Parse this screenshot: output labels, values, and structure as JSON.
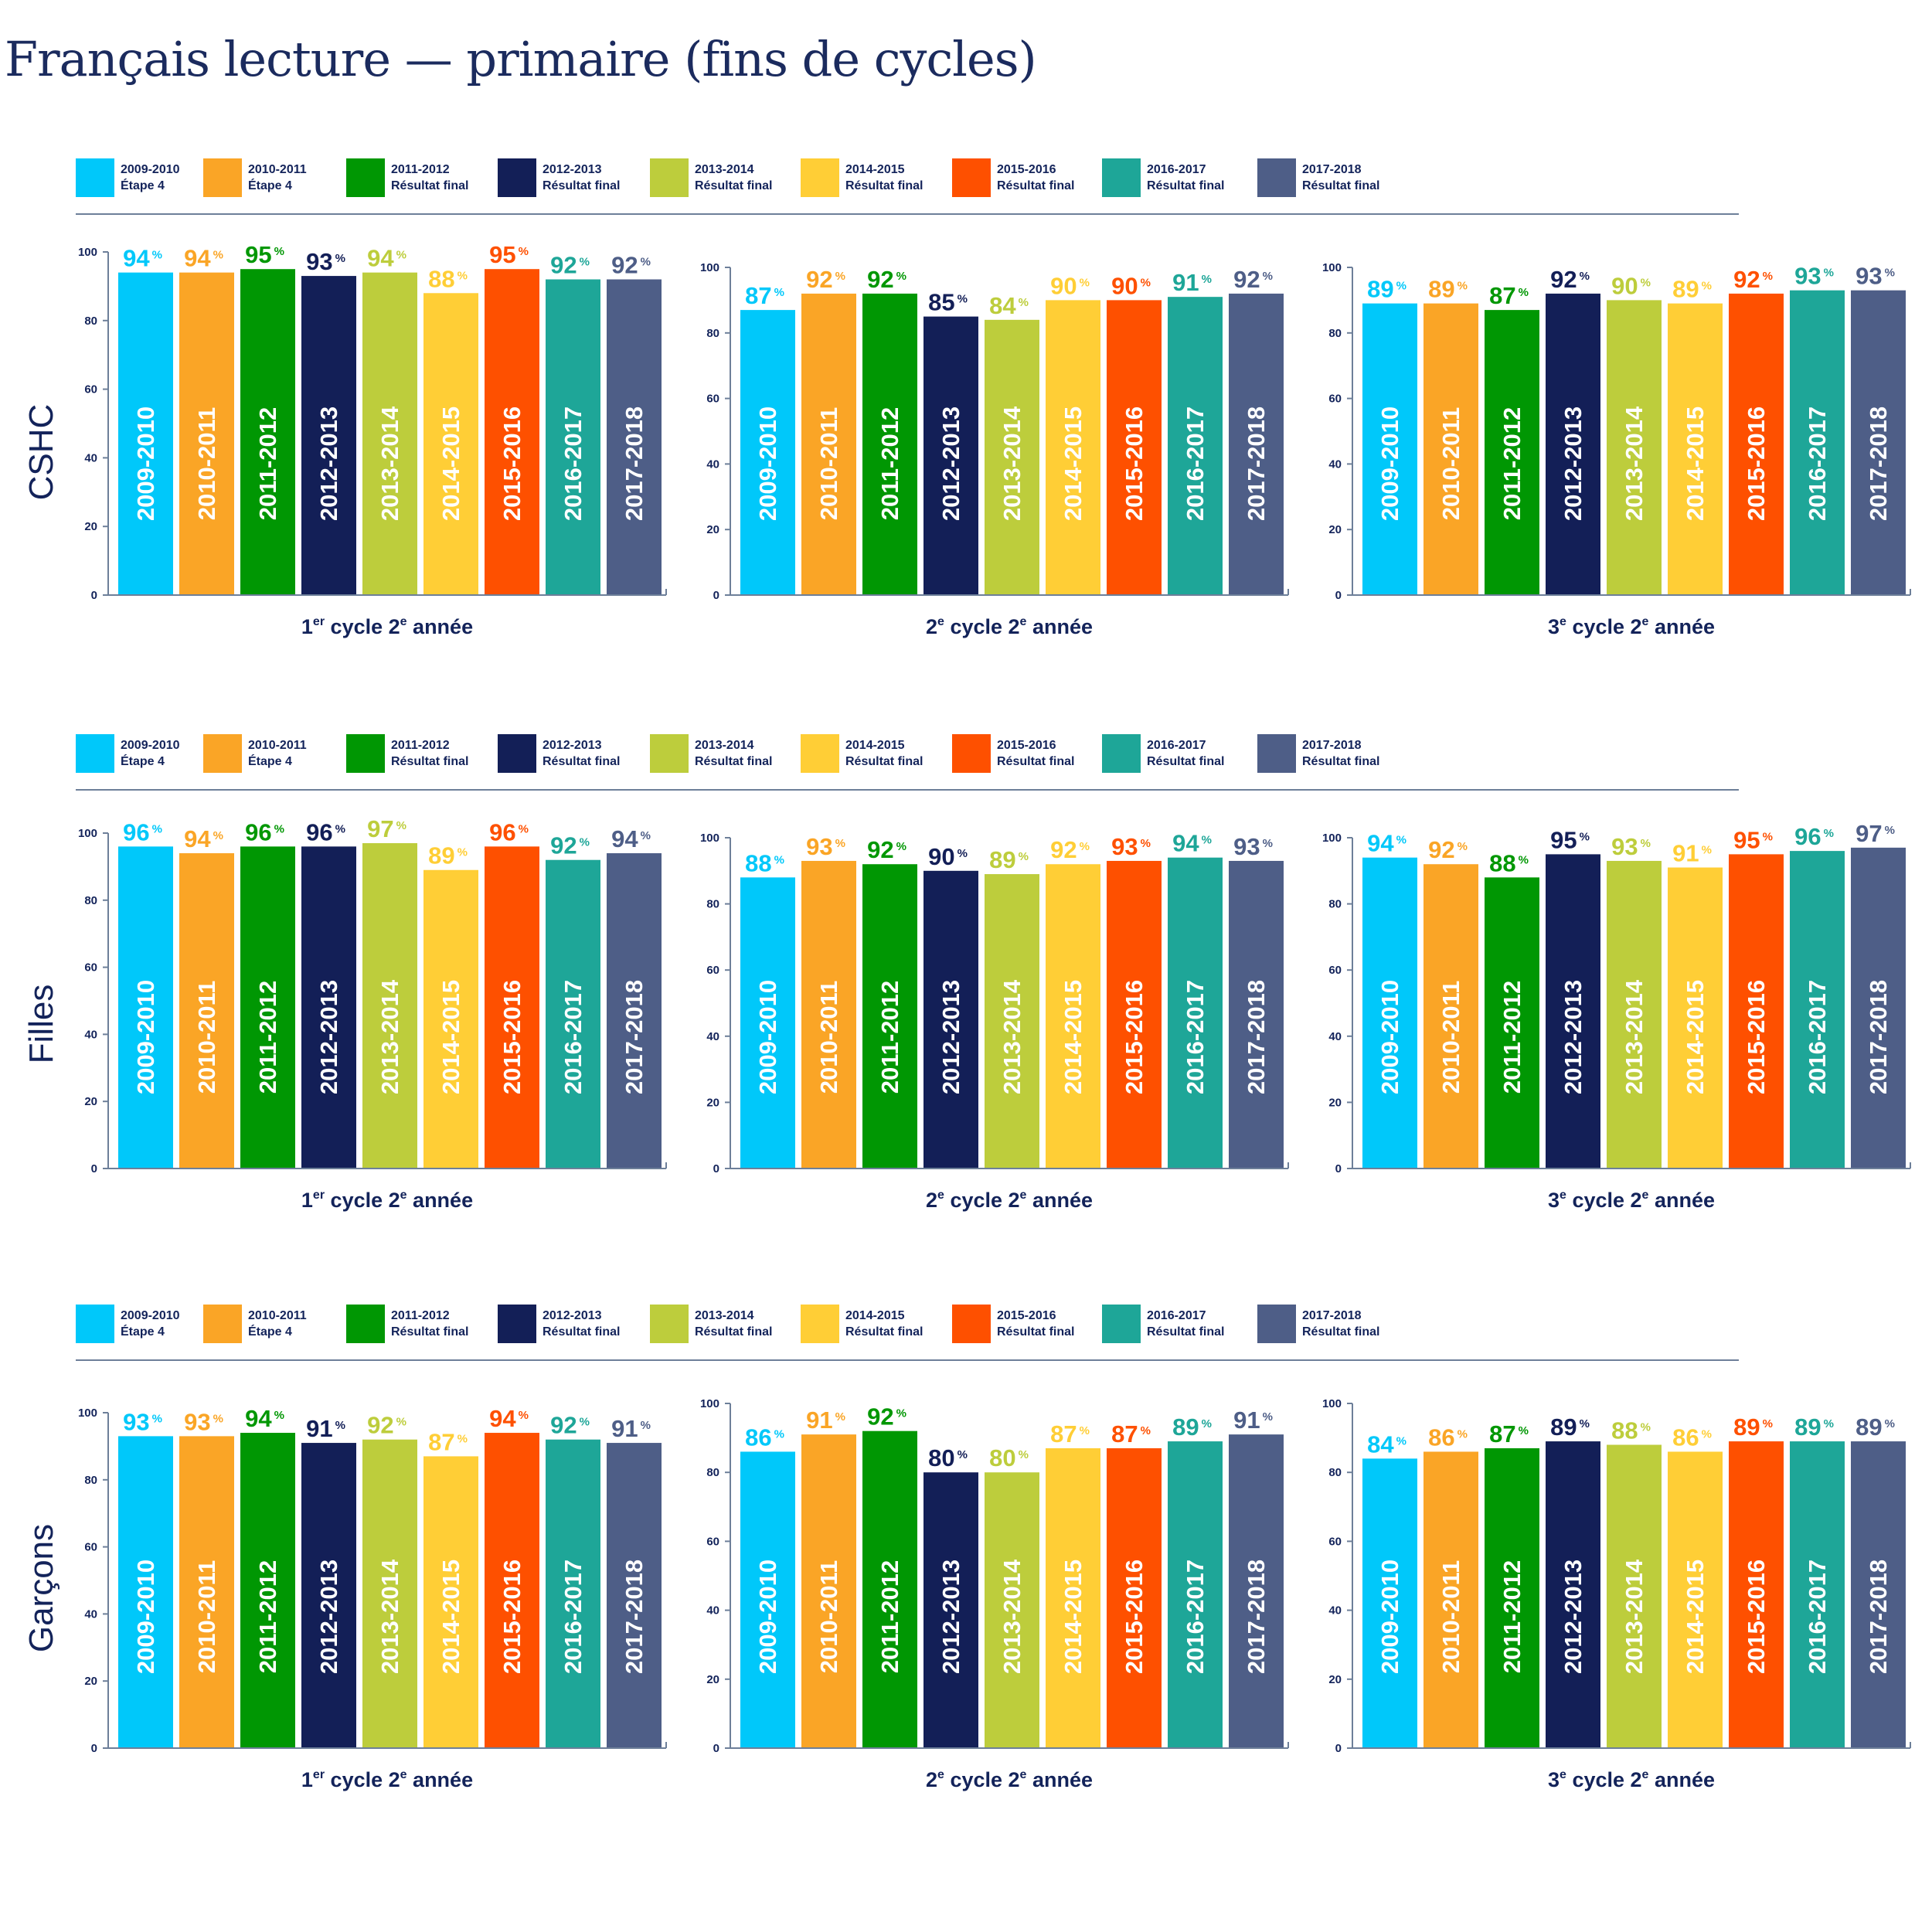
{
  "title": "Français lecture — primaire (fins de cycles)",
  "colors": {
    "2009-2010": "#00c8fa",
    "2010-2011": "#faa526",
    "2011-2012": "#009703",
    "2012-2013": "#131f57",
    "2013-2014": "#bdcd3c",
    "2014-2015": "#ffce36",
    "2015-2016": "#fe5000",
    "2016-2017": "#1ea698",
    "2017-2018": "#4e5e87"
  },
  "legend": [
    {
      "year": "2009-2010",
      "label": "Étape 4"
    },
    {
      "year": "2010-2011",
      "label": "Étape 4"
    },
    {
      "year": "2011-2012",
      "label": "Résultat final"
    },
    {
      "year": "2012-2013",
      "label": "Résultat final"
    },
    {
      "year": "2013-2014",
      "label": "Résultat final"
    },
    {
      "year": "2014-2015",
      "label": "Résultat final"
    },
    {
      "year": "2015-2016",
      "label": "Résultat final"
    },
    {
      "year": "2016-2017",
      "label": "Résultat final"
    },
    {
      "year": "2017-2018",
      "label": "Résultat final"
    }
  ],
  "rows": [
    {
      "label": "CSHC"
    },
    {
      "label": "Filles"
    },
    {
      "label": "Garçons"
    }
  ],
  "chart_data": [
    {
      "type": "bar",
      "row": "CSHC",
      "xlabel": {
        "num": "1",
        "sup": "er",
        "rest": " cycle 2",
        "sup2": "e",
        "tail": " année"
      },
      "categories": [
        "2009-2010",
        "2010-2011",
        "2011-2012",
        "2012-2013",
        "2013-2014",
        "2014-2015",
        "2015-2016",
        "2016-2017",
        "2017-2018"
      ],
      "values": [
        94,
        94,
        95,
        93,
        94,
        88,
        95,
        92,
        92
      ],
      "ylim": [
        0,
        100
      ],
      "yticks": [
        0,
        20,
        40,
        60,
        80,
        100
      ],
      "value_suffix": "%"
    },
    {
      "type": "bar",
      "row": "CSHC",
      "xlabel": {
        "num": "2",
        "sup": "e",
        "rest": " cycle 2",
        "sup2": "e",
        "tail": " année"
      },
      "categories": [
        "2009-2010",
        "2010-2011",
        "2011-2012",
        "2012-2013",
        "2013-2014",
        "2014-2015",
        "2015-2016",
        "2016-2017",
        "2017-2018"
      ],
      "values": [
        87,
        92,
        92,
        85,
        84,
        90,
        90,
        91,
        92
      ],
      "ylim": [
        0,
        100
      ],
      "yticks": [
        0,
        20,
        40,
        60,
        80,
        100
      ],
      "value_suffix": "%"
    },
    {
      "type": "bar",
      "row": "CSHC",
      "xlabel": {
        "num": "3",
        "sup": "e",
        "rest": " cycle 2",
        "sup2": "e",
        "tail": " année"
      },
      "categories": [
        "2009-2010",
        "2010-2011",
        "2011-2012",
        "2012-2013",
        "2013-2014",
        "2014-2015",
        "2015-2016",
        "2016-2017",
        "2017-2018"
      ],
      "values": [
        89,
        89,
        87,
        92,
        90,
        89,
        92,
        93,
        93
      ],
      "ylim": [
        0,
        100
      ],
      "yticks": [
        0,
        20,
        40,
        60,
        80,
        100
      ],
      "value_suffix": "%"
    },
    {
      "type": "bar",
      "row": "Filles",
      "xlabel": {
        "num": "1",
        "sup": "er",
        "rest": " cycle 2",
        "sup2": "e",
        "tail": " année"
      },
      "categories": [
        "2009-2010",
        "2010-2011",
        "2011-2012",
        "2012-2013",
        "2013-2014",
        "2014-2015",
        "2015-2016",
        "2016-2017",
        "2017-2018"
      ],
      "values": [
        96,
        94,
        96,
        96,
        97,
        89,
        96,
        92,
        94
      ],
      "ylim": [
        0,
        100
      ],
      "yticks": [
        0,
        20,
        40,
        60,
        80,
        100
      ],
      "value_suffix": "%"
    },
    {
      "type": "bar",
      "row": "Filles",
      "xlabel": {
        "num": "2",
        "sup": "e",
        "rest": " cycle 2",
        "sup2": "e",
        "tail": " année"
      },
      "categories": [
        "2009-2010",
        "2010-2011",
        "2011-2012",
        "2012-2013",
        "2013-2014",
        "2014-2015",
        "2015-2016",
        "2016-2017",
        "2017-2018"
      ],
      "values": [
        88,
        93,
        92,
        90,
        89,
        92,
        93,
        94,
        93
      ],
      "ylim": [
        0,
        100
      ],
      "yticks": [
        0,
        20,
        40,
        60,
        80,
        100
      ],
      "value_suffix": "%"
    },
    {
      "type": "bar",
      "row": "Filles",
      "xlabel": {
        "num": "3",
        "sup": "e",
        "rest": " cycle 2",
        "sup2": "e",
        "tail": " année"
      },
      "categories": [
        "2009-2010",
        "2010-2011",
        "2011-2012",
        "2012-2013",
        "2013-2014",
        "2014-2015",
        "2015-2016",
        "2016-2017",
        "2017-2018"
      ],
      "values": [
        94,
        92,
        88,
        95,
        93,
        91,
        95,
        96,
        97
      ],
      "ylim": [
        0,
        100
      ],
      "yticks": [
        0,
        20,
        40,
        60,
        80,
        100
      ],
      "value_suffix": "%"
    },
    {
      "type": "bar",
      "row": "Garçons",
      "xlabel": {
        "num": "1",
        "sup": "er",
        "rest": " cycle 2",
        "sup2": "e",
        "tail": " année"
      },
      "categories": [
        "2009-2010",
        "2010-2011",
        "2011-2012",
        "2012-2013",
        "2013-2014",
        "2014-2015",
        "2015-2016",
        "2016-2017",
        "2017-2018"
      ],
      "values": [
        93,
        93,
        94,
        91,
        92,
        87,
        94,
        92,
        91
      ],
      "ylim": [
        0,
        100
      ],
      "yticks": [
        0,
        20,
        40,
        60,
        80,
        100
      ],
      "value_suffix": "%"
    },
    {
      "type": "bar",
      "row": "Garçons",
      "xlabel": {
        "num": "2",
        "sup": "e",
        "rest": " cycle 2",
        "sup2": "e",
        "tail": " année"
      },
      "categories": [
        "2009-2010",
        "2010-2011",
        "2011-2012",
        "2012-2013",
        "2013-2014",
        "2014-2015",
        "2015-2016",
        "2016-2017",
        "2017-2018"
      ],
      "values": [
        86,
        91,
        92,
        80,
        80,
        87,
        87,
        89,
        91
      ],
      "ylim": [
        0,
        100
      ],
      "yticks": [
        0,
        20,
        40,
        60,
        80,
        100
      ],
      "value_suffix": "%"
    },
    {
      "type": "bar",
      "row": "Garçons",
      "xlabel": {
        "num": "3",
        "sup": "e",
        "rest": " cycle 2",
        "sup2": "e",
        "tail": " année"
      },
      "categories": [
        "2009-2010",
        "2010-2011",
        "2011-2012",
        "2012-2013",
        "2013-2014",
        "2014-2015",
        "2015-2016",
        "2016-2017",
        "2017-2018"
      ],
      "values": [
        84,
        86,
        87,
        89,
        88,
        86,
        89,
        89,
        89
      ],
      "ylim": [
        0,
        100
      ],
      "yticks": [
        0,
        20,
        40,
        60,
        80,
        100
      ],
      "value_suffix": "%"
    }
  ]
}
